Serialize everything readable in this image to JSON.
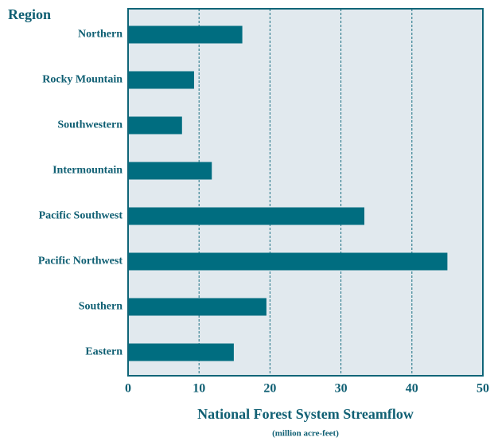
{
  "chart_data": {
    "type": "bar",
    "orientation": "horizontal",
    "title": "Region",
    "x_label": "National Forest System Streamflow",
    "x_sublabel": "(million acre-feet)",
    "categories": [
      "Northern",
      "Rocky Mountain",
      "Southwestern",
      "Intermountain",
      "Pacific Southwest",
      "Pacific Northwest",
      "Southern",
      "Eastern"
    ],
    "values": [
      16.1,
      9.3,
      7.6,
      11.8,
      33.3,
      45,
      19.5,
      14.9
    ],
    "color": "#006d80",
    "xlim": [
      0,
      50
    ],
    "xticks": [
      0,
      10,
      20,
      30,
      40,
      50
    ],
    "grid": true
  }
}
